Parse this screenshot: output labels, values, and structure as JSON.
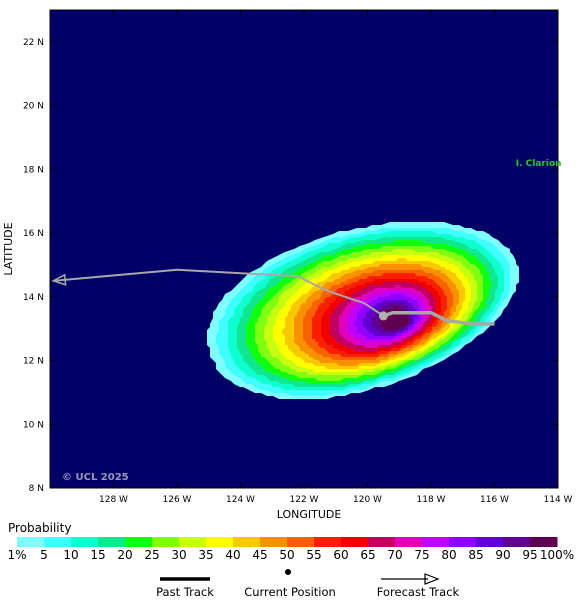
{
  "map": {
    "x_axis_title": "LONGITUDE",
    "y_axis_title": "LATITUDE",
    "lon_range": [
      -130,
      -114
    ],
    "lat_range": [
      8,
      23
    ],
    "lon_ticks": [
      {
        "value": -128,
        "label": "128 W"
      },
      {
        "value": -126,
        "label": "126 W"
      },
      {
        "value": -124,
        "label": "124 W"
      },
      {
        "value": -122,
        "label": "122 W"
      },
      {
        "value": -120,
        "label": "120 W"
      },
      {
        "value": -118,
        "label": "118 W"
      },
      {
        "value": -116,
        "label": "116 W"
      },
      {
        "value": -114,
        "label": "114 W"
      }
    ],
    "lat_ticks": [
      {
        "value": 22,
        "label": "22 N"
      },
      {
        "value": 20,
        "label": "20 N"
      },
      {
        "value": 18,
        "label": "18 N"
      },
      {
        "value": 16,
        "label": "16 N"
      },
      {
        "value": 14,
        "label": "14 N"
      },
      {
        "value": 12,
        "label": "12 N"
      },
      {
        "value": 10,
        "label": "10 N"
      },
      {
        "value": 8,
        "label": "8 N"
      }
    ],
    "island": {
      "label": "I. Clarion",
      "lon": -114.7,
      "lat": 18.2,
      "color": "#22cc22"
    },
    "copyright": "© UCL 2025",
    "ocean_color": "#000066",
    "probability_center": {
      "lon": -119.1,
      "lat": 13.3
    },
    "current_position": {
      "lon": -119.5,
      "lat": 13.4
    },
    "past_track": [
      {
        "lon": -116.0,
        "lat": 13.15
      },
      {
        "lon": -116.7,
        "lat": 13.15
      },
      {
        "lon": -117.5,
        "lat": 13.25
      },
      {
        "lon": -118.0,
        "lat": 13.5
      },
      {
        "lon": -119.2,
        "lat": 13.5
      },
      {
        "lon": -119.5,
        "lat": 13.4
      }
    ],
    "forecast_track": [
      {
        "lon": -119.5,
        "lat": 13.4
      },
      {
        "lon": -120.1,
        "lat": 13.8
      },
      {
        "lon": -121.3,
        "lat": 14.2
      },
      {
        "lon": -122.2,
        "lat": 14.65
      },
      {
        "lon": -124.2,
        "lat": 14.75
      },
      {
        "lon": -126.0,
        "lat": 14.85
      },
      {
        "lon": -129.9,
        "lat": 14.5
      }
    ]
  },
  "legend": {
    "title": "Probability",
    "colors": [
      "#80ffff",
      "#40ffff",
      "#10ffd0",
      "#10e890",
      "#10ff10",
      "#80ff10",
      "#c8ff10",
      "#ffff00",
      "#f8c800",
      "#f89000",
      "#f86000",
      "#f82000",
      "#f00000",
      "#c00060",
      "#e000c0",
      "#c000ff",
      "#9000ff",
      "#6000d0",
      "#600090",
      "#600050"
    ],
    "labels": [
      "1%",
      "5",
      "10",
      "15",
      "20",
      "25",
      "30",
      "35",
      "40",
      "45",
      "50",
      "55",
      "60",
      "65",
      "70",
      "75",
      "80",
      "85",
      "90",
      "95",
      "100%"
    ],
    "past_track_label": "Past Track",
    "current_position_label": "Current Position",
    "forecast_track_label": "Forecast Track"
  }
}
